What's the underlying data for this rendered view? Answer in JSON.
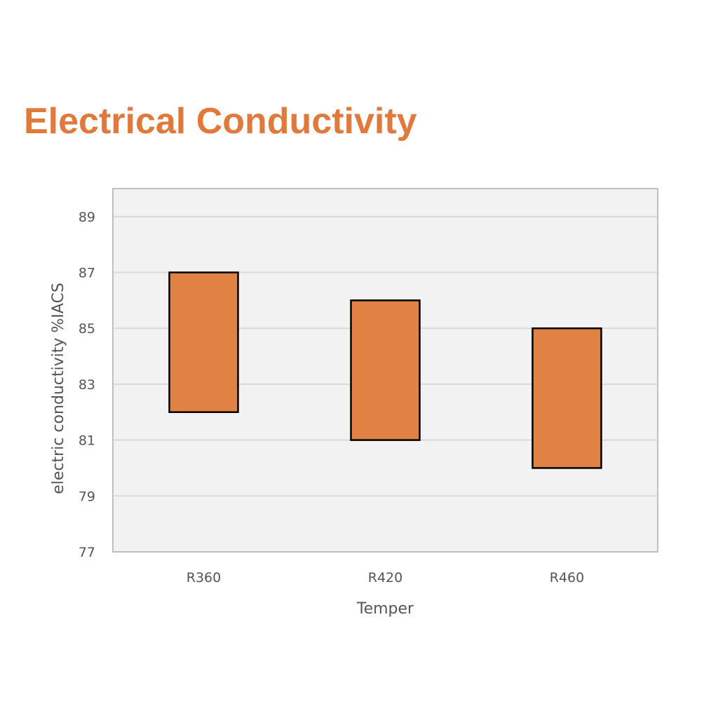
{
  "page": {
    "title": "Electrical Conductivity"
  },
  "colors": {
    "title": "#e07a3c",
    "bar_fill": "#e08244",
    "bar_stroke": "#000000",
    "plot_background": "#f2f2f2",
    "gridline": "#d9d9d9",
    "plot_border": "#bfbfbf",
    "text": "#555555"
  },
  "chart_data": {
    "type": "bar",
    "subtype": "floating-range",
    "title": "",
    "xlabel": "Temper",
    "ylabel": "electric conductivity %IACS",
    "categories": [
      "R360",
      "R420",
      "R460"
    ],
    "series": [
      {
        "ranges": [
          [
            82,
            87
          ],
          [
            81,
            86
          ],
          [
            80,
            85
          ]
        ]
      }
    ],
    "ylim": [
      77,
      90
    ],
    "yticks": [
      77,
      79,
      81,
      83,
      85,
      87,
      89
    ],
    "grid": true,
    "legend": "none"
  }
}
